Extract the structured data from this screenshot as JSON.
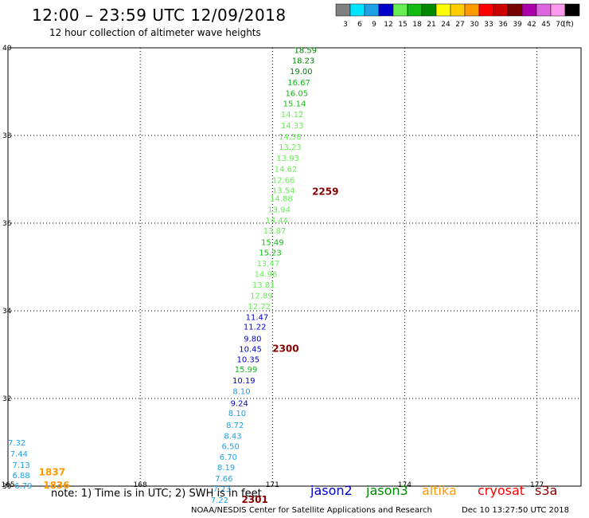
{
  "header": {
    "title": "12:00 – 23:59 UTC 12/09/2018",
    "subtitle": "12 hour collection of altimeter wave heights"
  },
  "colorbar": {
    "unit": "(ft)",
    "bins": [
      {
        "label": "3",
        "color": "#808080"
      },
      {
        "label": "6",
        "color": "#00e5ff"
      },
      {
        "label": "9",
        "color": "#1ea0e6"
      },
      {
        "label": "12",
        "color": "#0000cc"
      },
      {
        "label": "15",
        "color": "#66ee55"
      },
      {
        "label": "18",
        "color": "#11bb11"
      },
      {
        "label": "21",
        "color": "#008800"
      },
      {
        "label": "24",
        "color": "#ffff00"
      },
      {
        "label": "27",
        "color": "#ffcc00"
      },
      {
        "label": "30",
        "color": "#ff9900"
      },
      {
        "label": "33",
        "color": "#ff0000"
      },
      {
        "label": "36",
        "color": "#cc0000"
      },
      {
        "label": "39",
        "color": "#770000"
      },
      {
        "label": "42",
        "color": "#aa00aa"
      },
      {
        "label": "45",
        "color": "#dd66dd"
      },
      {
        "label": "70",
        "color": "#ff99ee"
      },
      {
        "label": "",
        "color": "#000000"
      }
    ]
  },
  "chart_data": {
    "type": "scatter",
    "xlim": [
      165,
      178
    ],
    "ylim": [
      30,
      40
    ],
    "x_ticks": [
      "165",
      "168",
      "171",
      "174",
      "177"
    ],
    "y_ticks": [
      "30",
      "32",
      "34",
      "36",
      "38",
      "40"
    ],
    "grid": true,
    "points": [
      {
        "lon": 171.75,
        "lat": 39.88,
        "value": "18.59",
        "color": "#008800"
      },
      {
        "lon": 171.7,
        "lat": 39.65,
        "value": "18.23",
        "color": "#008800"
      },
      {
        "lon": 171.65,
        "lat": 39.4,
        "value": "19.00",
        "color": "#008800"
      },
      {
        "lon": 171.6,
        "lat": 39.15,
        "value": "16.67",
        "color": "#11bb11"
      },
      {
        "lon": 171.55,
        "lat": 38.9,
        "value": "16.05",
        "color": "#11bb11"
      },
      {
        "lon": 171.5,
        "lat": 38.66,
        "value": "15.14",
        "color": "#11bb11"
      },
      {
        "lon": 171.45,
        "lat": 38.42,
        "value": "14.12",
        "color": "#66ee55"
      },
      {
        "lon": 171.45,
        "lat": 38.16,
        "value": "14.33",
        "color": "#66ee55"
      },
      {
        "lon": 171.4,
        "lat": 37.91,
        "value": "14.58",
        "color": "#66ee55"
      },
      {
        "lon": 171.4,
        "lat": 37.67,
        "value": "13.23",
        "color": "#66ee55"
      },
      {
        "lon": 171.35,
        "lat": 37.42,
        "value": "13.93",
        "color": "#66ee55"
      },
      {
        "lon": 171.3,
        "lat": 37.17,
        "value": "14.62",
        "color": "#66ee55"
      },
      {
        "lon": 171.25,
        "lat": 36.92,
        "value": "12.66",
        "color": "#66ee55"
      },
      {
        "lon": 171.25,
        "lat": 36.68,
        "value": "13.54",
        "color": "#66ee55"
      },
      {
        "lon": 171.2,
        "lat": 36.5,
        "value": "14.88",
        "color": "#66ee55"
      },
      {
        "lon": 171.15,
        "lat": 36.25,
        "value": "13.94",
        "color": "#66ee55"
      },
      {
        "lon": 171.1,
        "lat": 36.0,
        "value": "14.44",
        "color": "#66ee55"
      },
      {
        "lon": 171.05,
        "lat": 35.76,
        "value": "13.87",
        "color": "#66ee55"
      },
      {
        "lon": 171.0,
        "lat": 35.5,
        "value": "15.49",
        "color": "#11bb11"
      },
      {
        "lon": 170.95,
        "lat": 35.26,
        "value": "15.23",
        "color": "#11bb11"
      },
      {
        "lon": 170.9,
        "lat": 35.02,
        "value": "13.47",
        "color": "#66ee55"
      },
      {
        "lon": 170.85,
        "lat": 34.77,
        "value": "14.96",
        "color": "#66ee55"
      },
      {
        "lon": 170.8,
        "lat": 34.53,
        "value": "13.81",
        "color": "#66ee55"
      },
      {
        "lon": 170.75,
        "lat": 34.28,
        "value": "12.89",
        "color": "#66ee55"
      },
      {
        "lon": 170.7,
        "lat": 34.04,
        "value": "12.72",
        "color": "#66ee55"
      },
      {
        "lon": 170.65,
        "lat": 33.79,
        "value": "11.47",
        "color": "#0000cc"
      },
      {
        "lon": 170.6,
        "lat": 33.57,
        "value": "11.22",
        "color": "#0000cc"
      },
      {
        "lon": 170.55,
        "lat": 33.3,
        "value": "9.80",
        "color": "#0000cc"
      },
      {
        "lon": 170.5,
        "lat": 33.06,
        "value": "10.45",
        "color": "#0000cc"
      },
      {
        "lon": 170.45,
        "lat": 32.83,
        "value": "10.35",
        "color": "#0000cc"
      },
      {
        "lon": 170.4,
        "lat": 32.6,
        "value": "15.99",
        "color": "#11bb11"
      },
      {
        "lon": 170.35,
        "lat": 32.35,
        "value": "10.19",
        "color": "#0000cc"
      },
      {
        "lon": 170.3,
        "lat": 32.1,
        "value": "8.10",
        "color": "#1ea0e6"
      },
      {
        "lon": 170.25,
        "lat": 31.83,
        "value": "9.24",
        "color": "#0000cc"
      },
      {
        "lon": 170.2,
        "lat": 31.6,
        "value": "8.10",
        "color": "#1ea0e6"
      },
      {
        "lon": 170.15,
        "lat": 31.33,
        "value": "8.72",
        "color": "#1ea0e6"
      },
      {
        "lon": 170.1,
        "lat": 31.08,
        "value": "8.43",
        "color": "#1ea0e6"
      },
      {
        "lon": 170.05,
        "lat": 30.85,
        "value": "6.50",
        "color": "#1ea0e6"
      },
      {
        "lon": 170.0,
        "lat": 30.6,
        "value": "6.70",
        "color": "#1ea0e6"
      },
      {
        "lon": 169.95,
        "lat": 30.36,
        "value": "8.19",
        "color": "#1ea0e6"
      },
      {
        "lon": 169.9,
        "lat": 30.11,
        "value": "7.66",
        "color": "#1ea0e6"
      },
      {
        "lon": 169.85,
        "lat": 29.87,
        "value": "7.23",
        "color": "#1ea0e6"
      },
      {
        "lon": 169.8,
        "lat": 29.62,
        "value": "7.22",
        "color": "#1ea0e6"
      },
      {
        "lon": 165.2,
        "lat": 30.93,
        "value": "7.32",
        "color": "#1ea0e6"
      },
      {
        "lon": 165.25,
        "lat": 30.67,
        "value": "7.44",
        "color": "#1ea0e6"
      },
      {
        "lon": 165.3,
        "lat": 30.42,
        "value": "7.13",
        "color": "#1ea0e6"
      },
      {
        "lon": 165.3,
        "lat": 30.18,
        "value": "6.88",
        "color": "#1ea0e6"
      },
      {
        "lon": 165.35,
        "lat": 29.95,
        "value": "6.79",
        "color": "#1ea0e6"
      }
    ],
    "pass_times": [
      {
        "lon": 172.2,
        "lat": 36.65,
        "label": "2259",
        "color": "#880000"
      },
      {
        "lon": 171.3,
        "lat": 33.06,
        "label": "2300",
        "color": "#880000"
      },
      {
        "lon": 170.6,
        "lat": 29.62,
        "label": "2301",
        "color": "#880000"
      },
      {
        "lon": 166.0,
        "lat": 30.25,
        "label": "1837",
        "color": "#ff9900"
      },
      {
        "lon": 166.1,
        "lat": 29.95,
        "label": "1836",
        "color": "#ff9900"
      }
    ]
  },
  "footer": {
    "note": "note:  1) Time is in UTC; 2) SWH is in feet",
    "satellites": [
      {
        "label": "jason2",
        "color": "#0000cc"
      },
      {
        "label": "jason3",
        "color": "#008800"
      },
      {
        "label": "altika",
        "color": "#ff9900"
      },
      {
        "label": "cryosat",
        "color": "#ff0000"
      },
      {
        "label": "s3a",
        "color": "#880000"
      }
    ],
    "credit": "NOAA/NESDIS Center for Satellite Applications and Research",
    "timestamp": "Dec 10 13:27:50 UTC 2018"
  }
}
